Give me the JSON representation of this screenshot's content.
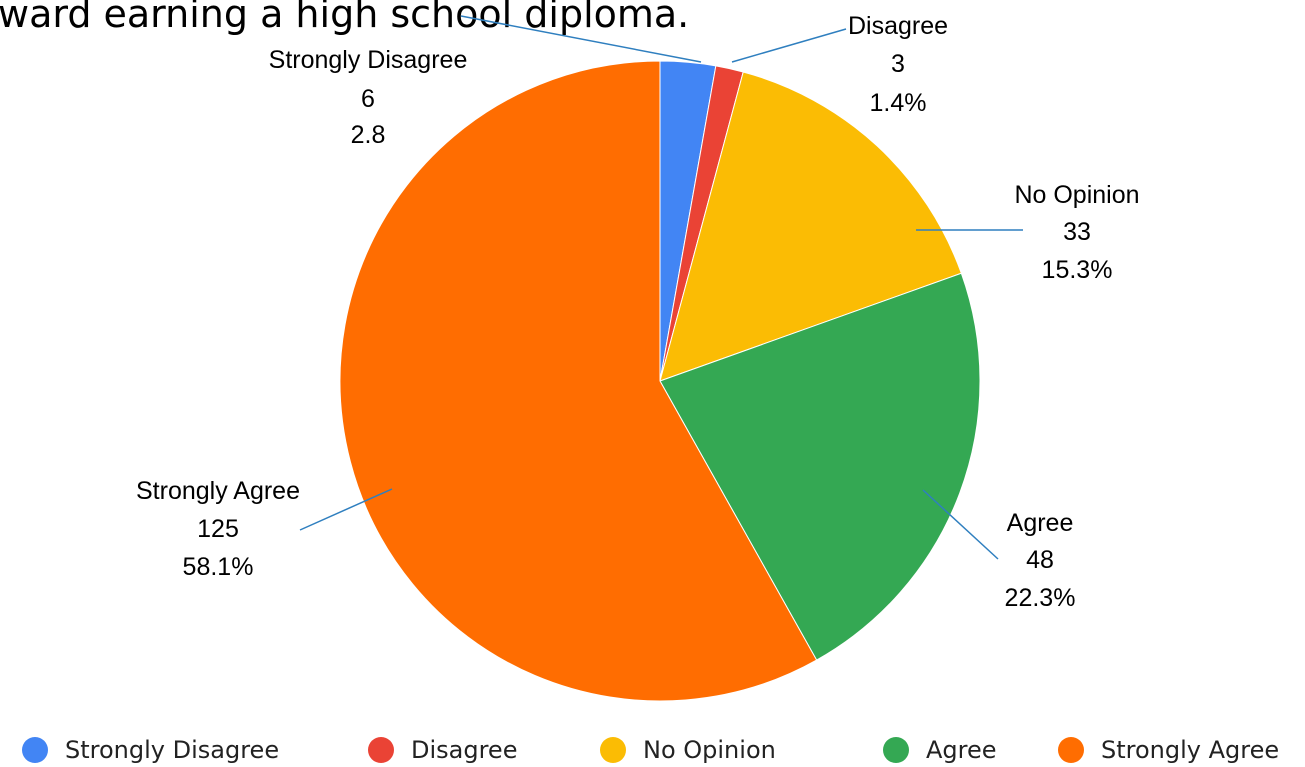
{
  "chart_data": {
    "type": "pie",
    "title": "ward earning a high school diploma.",
    "categories": [
      "Strongly Disagree",
      "Disagree",
      "No Opinion",
      "Agree",
      "Strongly Agree"
    ],
    "values": [
      6,
      3,
      33,
      48,
      125
    ],
    "value_labels": [
      "6",
      "3",
      "33",
      "48",
      "125"
    ],
    "percent_labels": [
      "2.8",
      "1.4%",
      "15.3%",
      "22.3%",
      "58.1%"
    ],
    "colors": [
      "#4285f4",
      "#ea4335",
      "#fbbc04",
      "#34a853",
      "#ff6d01"
    ],
    "start_angle_deg": 0,
    "direction": "clockwise",
    "legend_position": "bottom"
  }
}
